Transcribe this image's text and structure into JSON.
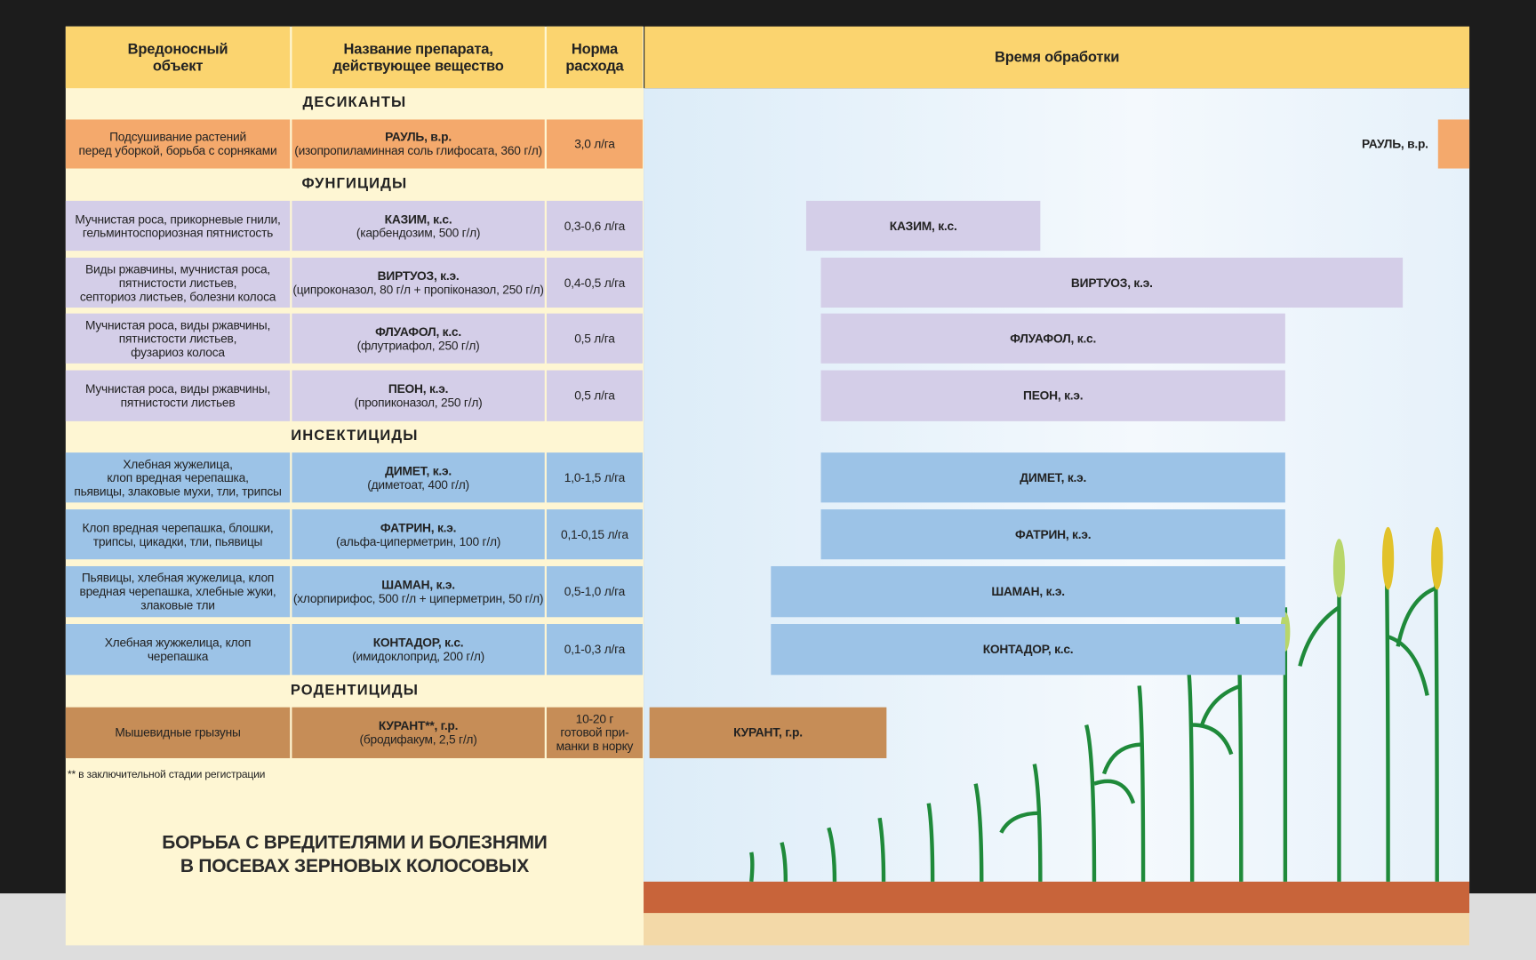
{
  "header": {
    "pest": "Вредоносный\nобъект",
    "product": "Название препарата,\nдействующее вещество",
    "rate": "Норма\nрасхода",
    "time": "Время обработки"
  },
  "sections": [
    {
      "title": "ДЕСИКАНТЫ",
      "rows": [
        {
          "pest": "Подсушивание растений\nперед уборкой, борьба с сорняками",
          "product": "РАУЛЬ, в.р.",
          "substance": "(изопропиламинная соль глифосата, 360 г/л)",
          "rate": "3,0 л/га"
        }
      ]
    },
    {
      "title": "ФУНГИЦИДЫ",
      "rows": [
        {
          "pest": "Мучнистая роса, прикорневые гнили,\nгельминтоспориозная пятнистость",
          "product": "КАЗИМ, к.с.",
          "substance": "(карбендозим, 500 г/л)",
          "rate": "0,3-0,6 л/га"
        },
        {
          "pest": "Виды ржавчины, мучнистая роса,\nпятнистости листьев,\nсепториоз листьев, болезни колоса",
          "product": "ВИРТУОЗ, к.э.",
          "substance": "(ципроконазол, 80 г/л + пропіконазол, 250 г/л)",
          "rate": "0,4-0,5 л/га"
        },
        {
          "pest": "Мучнистая роса, виды ржавчины,\nпятнистости листьев,\nфузариоз колоса",
          "product": "ФЛУАФОЛ, к.с.",
          "substance": "(флутриафол, 250 г/л)",
          "rate": "0,5 л/га"
        },
        {
          "pest": "Мучнистая роса, виды ржавчины,\nпятнистости листьев",
          "product": "ПЕОН, к.э.",
          "substance": "(пропиконазол, 250 г/л)",
          "rate": "0,5 л/га"
        }
      ]
    },
    {
      "title": "ИНСЕКТИЦИДЫ",
      "rows": [
        {
          "pest": "Хлебная жужелица,\nклоп вредная черепашка,\nпьявицы, злаковые мухи, тли, трипсы",
          "product": "ДИМЕТ, к.э.",
          "substance": "(диметоат, 400 г/л)",
          "rate": "1,0-1,5 л/га"
        },
        {
          "pest": "Клоп вредная черепашка, блошки,\nтрипсы, цикадки, тли, пьявицы",
          "product": "ФАТРИН, к.э.",
          "substance": "(альфа-циперметрин, 100 г/л)",
          "rate": "0,1-0,15 л/га"
        },
        {
          "pest": "Пьявицы, хлебная жужелица, клоп\nвредная черепашка, хлебные жуки,\nзлаковые тли",
          "product": "ШАМАН, к.э.",
          "substance": "(хлорпирифос, 500 г/л + циперметрин, 50 г/л)",
          "rate": "0,5-1,0 л/га"
        },
        {
          "pest": "Хлебная жужжелица, клоп\nчерепашка",
          "product": "КОНТАДОР, к.с.",
          "substance": "(имидоклоприд, 200 г/л)",
          "rate": "0,1-0,3 л/га"
        }
      ]
    },
    {
      "title": "РОДЕНТИЦИДЫ",
      "rows": [
        {
          "pest": "Мышевидные грызуны",
          "product": "КУРАНТ**, г.р.",
          "substance": "(бродифакум, 2,5 г/л)",
          "rate": "10-20 г\nготовой при-\nманки в норку",
          "bar": "КУРАНТ, г.р."
        }
      ]
    }
  ],
  "footnote": "** в заключительной стадии регистрации",
  "title": "БОРЬБА С ВРЕДИТЕЛЯМИ И БОЛЕЗНЯМИ\nВ ПОСЕВАХ ЗЕРНОВЫХ КОЛОСОВЫХ"
}
